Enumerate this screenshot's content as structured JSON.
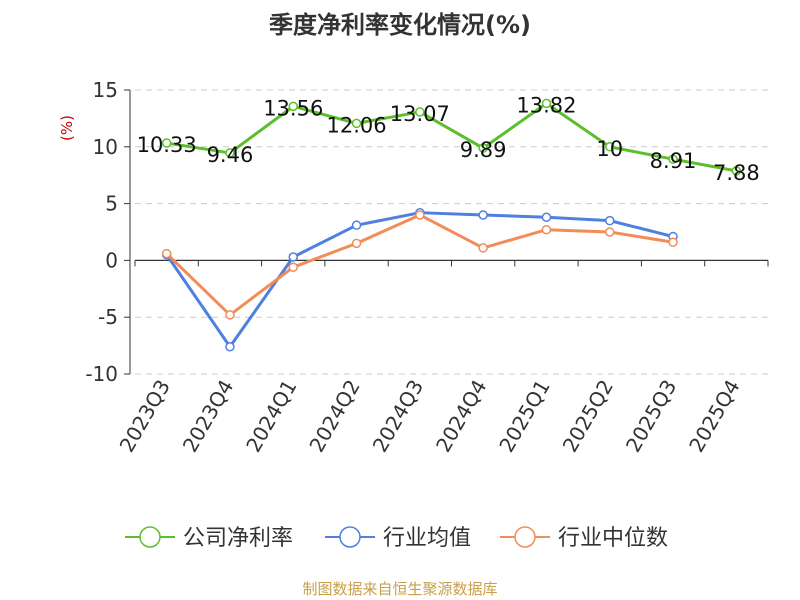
{
  "chart_data": {
    "type": "line",
    "title": "季度净利率变化情况(%)",
    "ylabel": "(%)",
    "ylim": [
      -10,
      15
    ],
    "yticks": [
      15,
      10,
      5,
      0,
      -5,
      -10
    ],
    "grid": "horizontal dashed",
    "legend_placement": "bottom",
    "categories": [
      "2023Q3",
      "2023Q4",
      "2024Q1",
      "2024Q2",
      "2024Q3",
      "2024Q4",
      "2025Q1",
      "2025Q2",
      "2025Q3",
      "2025Q4"
    ],
    "series": [
      {
        "name": "公司净利率",
        "color": "#5bbf2a",
        "labeled": true,
        "values": [
          10.33,
          9.46,
          13.56,
          12.06,
          13.07,
          9.89,
          13.82,
          10,
          8.91,
          7.88
        ]
      },
      {
        "name": "行业均值",
        "color": "#4f7fdf",
        "labeled": false,
        "values": [
          0.5,
          -7.6,
          0.3,
          3.1,
          4.2,
          4.0,
          3.8,
          3.5,
          2.1,
          null
        ]
      },
      {
        "name": "行业中位数",
        "color": "#f28c58",
        "labeled": false,
        "values": [
          0.6,
          -4.8,
          -0.6,
          1.5,
          4.0,
          1.1,
          2.7,
          2.5,
          1.6,
          null
        ]
      }
    ],
    "source": "制图数据来自恒生聚源数据库"
  }
}
